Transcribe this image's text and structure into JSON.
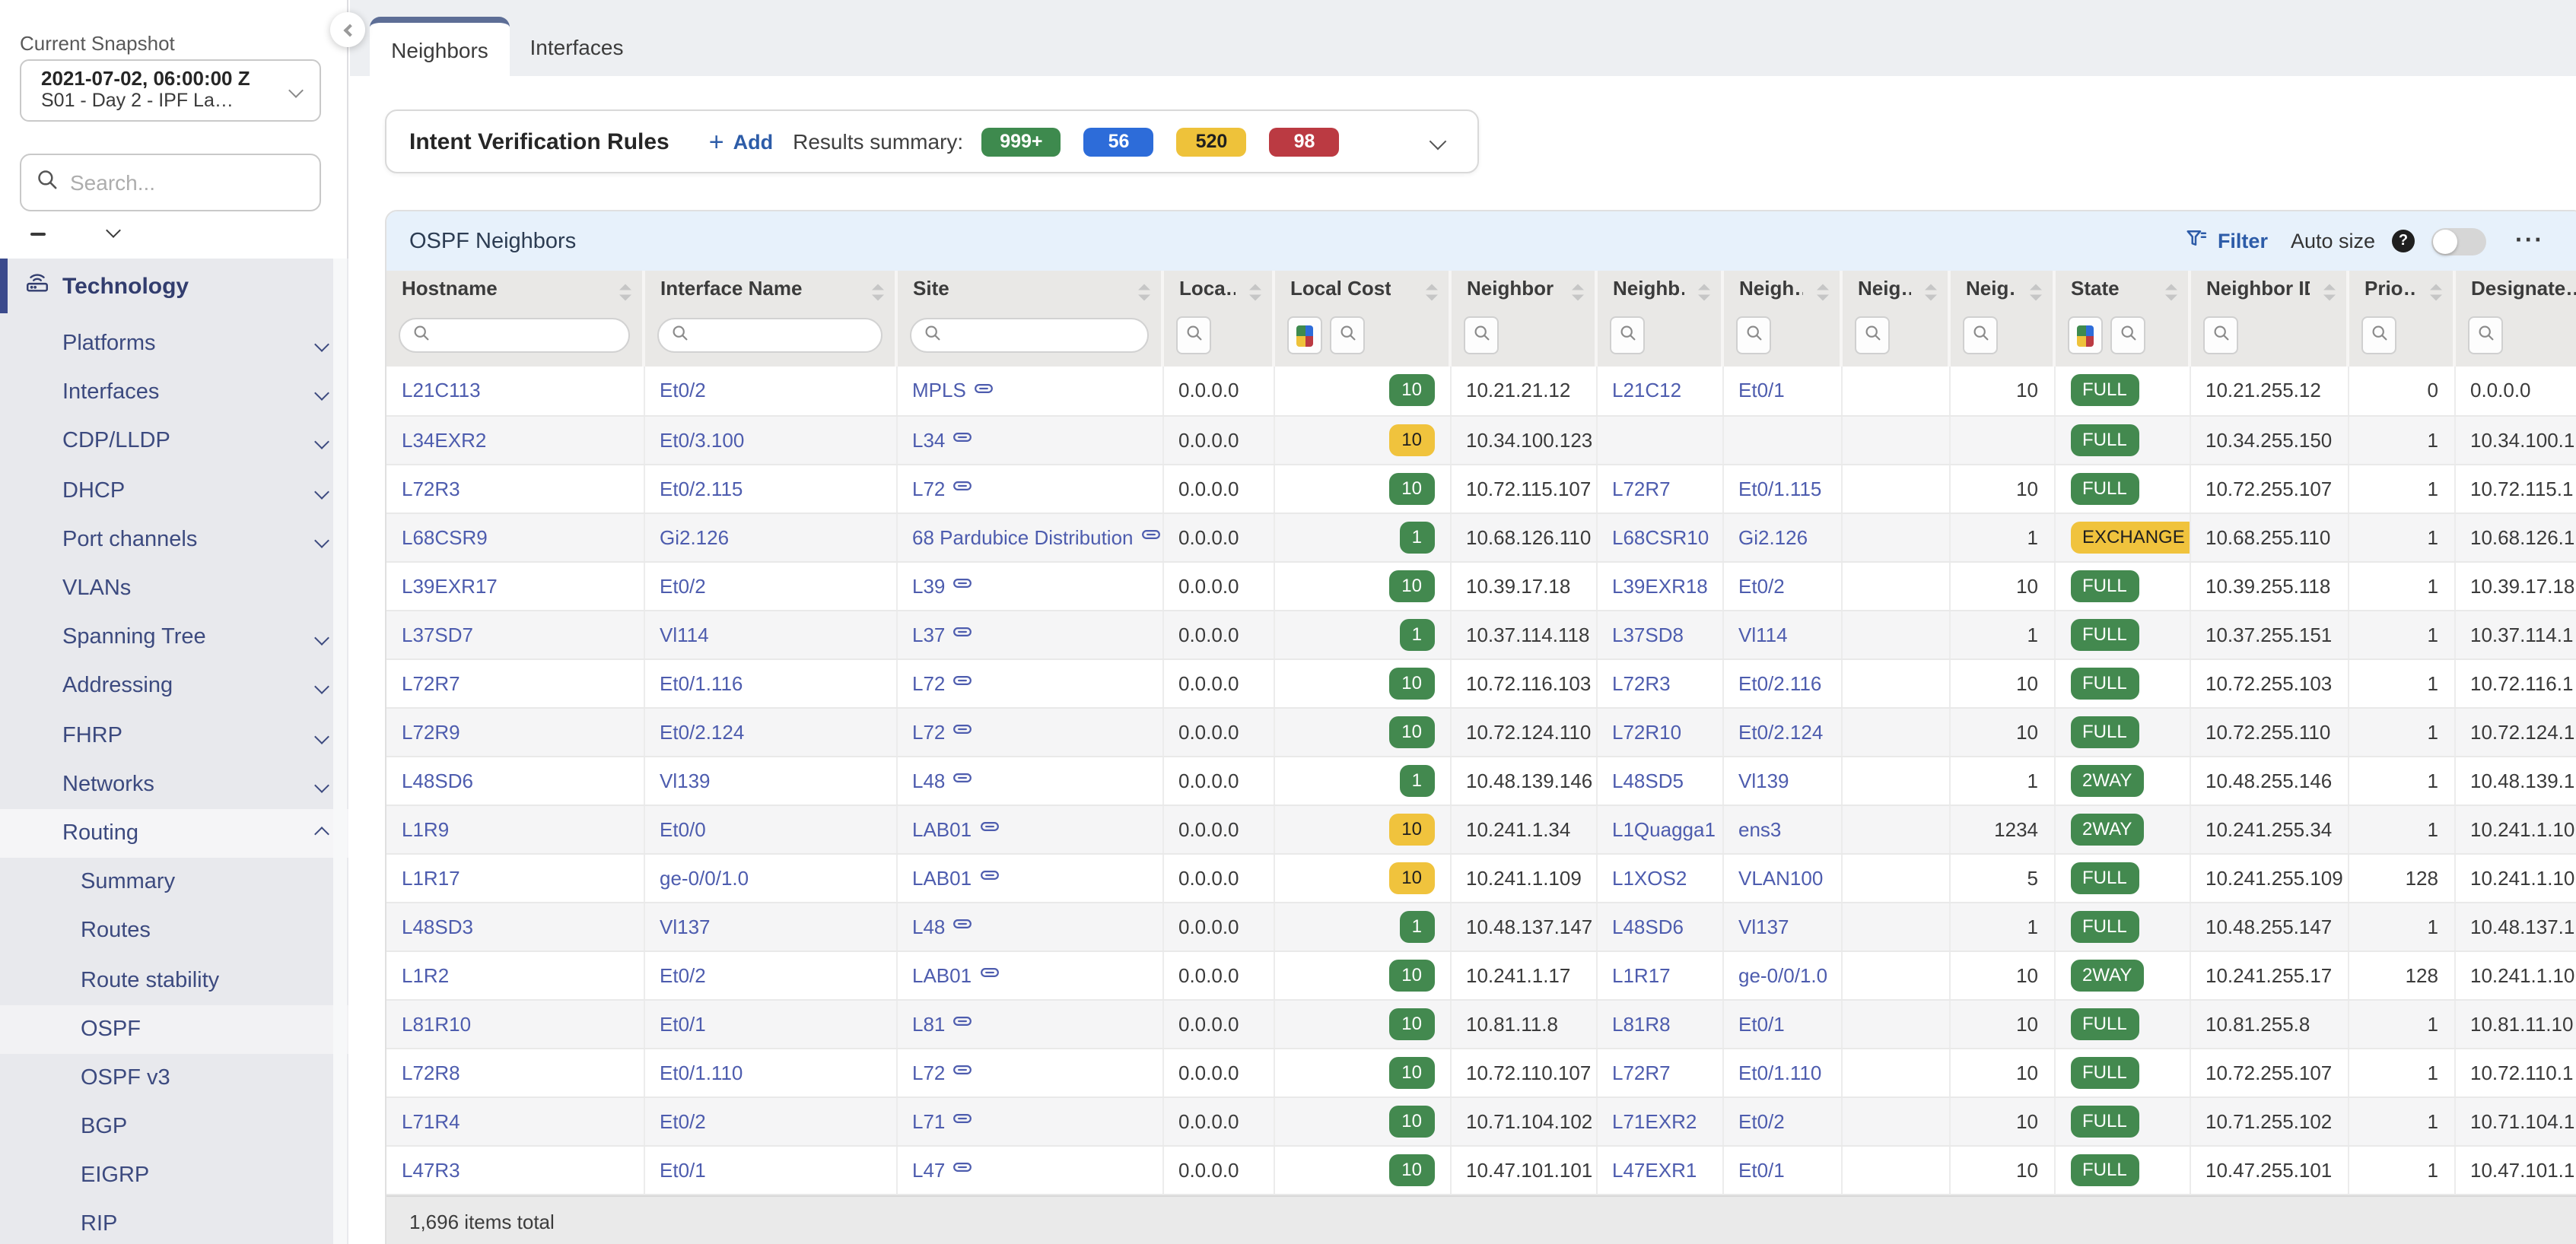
{
  "sidebar": {
    "snapshot_label": "Current Snapshot",
    "snapshot_title": "2021-07-02, 06:00:00 Z",
    "snapshot_subtitle": "S01 - Day 2 - IPF La…",
    "search_placeholder": "Search...",
    "section": {
      "label": "Technology",
      "icon": "router-icon"
    },
    "items": [
      {
        "label": "Platforms",
        "chevron": "down"
      },
      {
        "label": "Interfaces",
        "chevron": "down"
      },
      {
        "label": "CDP/LLDP",
        "chevron": "down"
      },
      {
        "label": "DHCP",
        "chevron": "down"
      },
      {
        "label": "Port channels",
        "chevron": "down"
      },
      {
        "label": "VLANs",
        "chevron": "none"
      },
      {
        "label": "Spanning Tree",
        "chevron": "down"
      },
      {
        "label": "Addressing",
        "chevron": "down"
      },
      {
        "label": "FHRP",
        "chevron": "down"
      },
      {
        "label": "Networks",
        "chevron": "down"
      },
      {
        "label": "Routing",
        "chevron": "up",
        "highlight": true
      }
    ],
    "routing_children": [
      "Summary",
      "Routes",
      "Route stability",
      "OSPF",
      "OSPF v3",
      "BGP",
      "EIGRP",
      "RIP"
    ],
    "active_child": "OSPF"
  },
  "tabs": [
    {
      "label": "Neighbors",
      "active": true
    },
    {
      "label": "Interfaces",
      "active": false
    }
  ],
  "intent": {
    "title": "Intent Verification Rules",
    "add_label": "Add",
    "add_icon": "+",
    "summary_label": "Results summary:",
    "badges": [
      {
        "text": "999+",
        "tone": "green",
        "color": "#3e8a4e"
      },
      {
        "text": "56",
        "tone": "blue",
        "color": "#2d6cd9"
      },
      {
        "text": "520",
        "tone": "yellow",
        "color": "#eec23a"
      },
      {
        "text": "98",
        "tone": "red",
        "color": "#bb3a42"
      }
    ]
  },
  "table": {
    "title": "OSPF Neighbors",
    "toolbar": {
      "filter_label": "Filter",
      "autosize_label": "Auto size",
      "help_glyph": "?",
      "toggle_state": "off",
      "more_glyph": "···"
    },
    "footer": "1,696 items total",
    "columns": [
      {
        "key": "hostname",
        "label": "Hostname",
        "width": 169,
        "filter": "input",
        "kind": "link"
      },
      {
        "key": "iface",
        "label": "Interface Name",
        "width": 166,
        "filter": "input",
        "kind": "link"
      },
      {
        "key": "site",
        "label": "Site",
        "width": 175,
        "filter": "input",
        "kind": "site"
      },
      {
        "key": "local_addr",
        "label": "Loca…",
        "width": 73,
        "filter": "btn",
        "kind": "text"
      },
      {
        "key": "local_cost",
        "label": "Local Cost",
        "width": 116,
        "filter": "color+btn",
        "kind": "badge-right"
      },
      {
        "key": "n_ip",
        "label": "Neighbor …",
        "width": 96,
        "filter": "btn",
        "kind": "text"
      },
      {
        "key": "n_host",
        "label": "Neighb…",
        "width": 83,
        "filter": "btn",
        "kind": "link"
      },
      {
        "key": "n_iface",
        "label": "Neigh…",
        "width": 78,
        "filter": "btn",
        "kind": "link"
      },
      {
        "key": "n_area",
        "label": "Neig…",
        "width": 71,
        "filter": "btn",
        "kind": "text"
      },
      {
        "key": "n_cost",
        "label": "Neig…",
        "width": 69,
        "filter": "btn",
        "kind": "text-right"
      },
      {
        "key": "state",
        "label": "State",
        "width": 89,
        "filter": "color+btn",
        "kind": "badge-left"
      },
      {
        "key": "n_id",
        "label": "Neighbor ID",
        "width": 104,
        "filter": "btn",
        "kind": "text"
      },
      {
        "key": "prio",
        "label": "Prio…",
        "width": 70,
        "filter": "btn",
        "kind": "text-right"
      },
      {
        "key": "dr",
        "label": "Designate…",
        "width": 110,
        "filter": "btn",
        "kind": "text"
      }
    ],
    "rows": [
      {
        "hostname": "L21C113",
        "iface": "Et0/2",
        "site": "MPLS",
        "local_addr": "0.0.0.0",
        "local_cost": {
          "text": "10",
          "tone": "green"
        },
        "n_ip": "10.21.21.12",
        "n_host": "L21C12",
        "n_iface": "Et0/1",
        "n_area": "",
        "n_cost": "10",
        "state": {
          "text": "FULL",
          "tone": "green"
        },
        "n_id": "10.21.255.12",
        "prio": "0",
        "dr": "0.0.0.0"
      },
      {
        "hostname": "L34EXR2",
        "iface": "Et0/3.100",
        "site": "L34",
        "local_addr": "0.0.0.0",
        "local_cost": {
          "text": "10",
          "tone": "yellow"
        },
        "n_ip": "10.34.100.123",
        "n_host": "",
        "n_iface": "",
        "n_area": "",
        "n_cost": "",
        "state": {
          "text": "FULL",
          "tone": "green"
        },
        "n_id": "10.34.255.150",
        "prio": "1",
        "dr": "10.34.100.1"
      },
      {
        "hostname": "L72R3",
        "iface": "Et0/2.115",
        "site": "L72",
        "local_addr": "0.0.0.0",
        "local_cost": {
          "text": "10",
          "tone": "green"
        },
        "n_ip": "10.72.115.107",
        "n_host": "L72R7",
        "n_iface": "Et0/1.115",
        "n_area": "",
        "n_cost": "10",
        "state": {
          "text": "FULL",
          "tone": "green"
        },
        "n_id": "10.72.255.107",
        "prio": "1",
        "dr": "10.72.115.1"
      },
      {
        "hostname": "L68CSR9",
        "iface": "Gi2.126",
        "site": "68 Pardubice Distribution",
        "local_addr": "0.0.0.0",
        "local_cost": {
          "text": "1",
          "tone": "green"
        },
        "n_ip": "10.68.126.110",
        "n_host": "L68CSR10",
        "n_iface": "Gi2.126",
        "n_area": "",
        "n_cost": "1",
        "state": {
          "text": "EXCHANGE",
          "tone": "yellow"
        },
        "n_id": "10.68.255.110",
        "prio": "1",
        "dr": "10.68.126.1"
      },
      {
        "hostname": "L39EXR17",
        "iface": "Et0/2",
        "site": "L39",
        "local_addr": "0.0.0.0",
        "local_cost": {
          "text": "10",
          "tone": "green"
        },
        "n_ip": "10.39.17.18",
        "n_host": "L39EXR18",
        "n_iface": "Et0/2",
        "n_area": "",
        "n_cost": "10",
        "state": {
          "text": "FULL",
          "tone": "green"
        },
        "n_id": "10.39.255.118",
        "prio": "1",
        "dr": "10.39.17.18"
      },
      {
        "hostname": "L37SD7",
        "iface": "Vl114",
        "site": "L37",
        "local_addr": "0.0.0.0",
        "local_cost": {
          "text": "1",
          "tone": "green"
        },
        "n_ip": "10.37.114.118",
        "n_host": "L37SD8",
        "n_iface": "Vl114",
        "n_area": "",
        "n_cost": "1",
        "state": {
          "text": "FULL",
          "tone": "green"
        },
        "n_id": "10.37.255.151",
        "prio": "1",
        "dr": "10.37.114.1"
      },
      {
        "hostname": "L72R7",
        "iface": "Et0/1.116",
        "site": "L72",
        "local_addr": "0.0.0.0",
        "local_cost": {
          "text": "10",
          "tone": "green"
        },
        "n_ip": "10.72.116.103",
        "n_host": "L72R3",
        "n_iface": "Et0/2.116",
        "n_area": "",
        "n_cost": "10",
        "state": {
          "text": "FULL",
          "tone": "green"
        },
        "n_id": "10.72.255.103",
        "prio": "1",
        "dr": "10.72.116.1"
      },
      {
        "hostname": "L72R9",
        "iface": "Et0/2.124",
        "site": "L72",
        "local_addr": "0.0.0.0",
        "local_cost": {
          "text": "10",
          "tone": "green"
        },
        "n_ip": "10.72.124.110",
        "n_host": "L72R10",
        "n_iface": "Et0/2.124",
        "n_area": "",
        "n_cost": "10",
        "state": {
          "text": "FULL",
          "tone": "green"
        },
        "n_id": "10.72.255.110",
        "prio": "1",
        "dr": "10.72.124.1"
      },
      {
        "hostname": "L48SD6",
        "iface": "Vl139",
        "site": "L48",
        "local_addr": "0.0.0.0",
        "local_cost": {
          "text": "1",
          "tone": "green"
        },
        "n_ip": "10.48.139.146",
        "n_host": "L48SD5",
        "n_iface": "Vl139",
        "n_area": "",
        "n_cost": "1",
        "state": {
          "text": "2WAY",
          "tone": "green"
        },
        "n_id": "10.48.255.146",
        "prio": "1",
        "dr": "10.48.139.1"
      },
      {
        "hostname": "L1R9",
        "iface": "Et0/0",
        "site": "LAB01",
        "local_addr": "0.0.0.0",
        "local_cost": {
          "text": "10",
          "tone": "yellow"
        },
        "n_ip": "10.241.1.34",
        "n_host": "L1Quagga1",
        "n_iface": "ens3",
        "n_area": "",
        "n_cost": "1234",
        "state": {
          "text": "2WAY",
          "tone": "green"
        },
        "n_id": "10.241.255.34",
        "prio": "1",
        "dr": "10.241.1.10"
      },
      {
        "hostname": "L1R17",
        "iface": "ge-0/0/1.0",
        "site": "LAB01",
        "local_addr": "0.0.0.0",
        "local_cost": {
          "text": "10",
          "tone": "yellow"
        },
        "n_ip": "10.241.1.109",
        "n_host": "L1XOS2",
        "n_iface": "VLAN100",
        "n_area": "",
        "n_cost": "5",
        "state": {
          "text": "FULL",
          "tone": "green"
        },
        "n_id": "10.241.255.109",
        "prio": "128",
        "dr": "10.241.1.10"
      },
      {
        "hostname": "L48SD3",
        "iface": "Vl137",
        "site": "L48",
        "local_addr": "0.0.0.0",
        "local_cost": {
          "text": "1",
          "tone": "green"
        },
        "n_ip": "10.48.137.147",
        "n_host": "L48SD6",
        "n_iface": "Vl137",
        "n_area": "",
        "n_cost": "1",
        "state": {
          "text": "FULL",
          "tone": "green"
        },
        "n_id": "10.48.255.147",
        "prio": "1",
        "dr": "10.48.137.1"
      },
      {
        "hostname": "L1R2",
        "iface": "Et0/2",
        "site": "LAB01",
        "local_addr": "0.0.0.0",
        "local_cost": {
          "text": "10",
          "tone": "green"
        },
        "n_ip": "10.241.1.17",
        "n_host": "L1R17",
        "n_iface": "ge-0/0/1.0",
        "n_area": "",
        "n_cost": "10",
        "state": {
          "text": "2WAY",
          "tone": "green"
        },
        "n_id": "10.241.255.17",
        "prio": "128",
        "dr": "10.241.1.10"
      },
      {
        "hostname": "L81R10",
        "iface": "Et0/1",
        "site": "L81",
        "local_addr": "0.0.0.0",
        "local_cost": {
          "text": "10",
          "tone": "green"
        },
        "n_ip": "10.81.11.8",
        "n_host": "L81R8",
        "n_iface": "Et0/1",
        "n_area": "",
        "n_cost": "10",
        "state": {
          "text": "FULL",
          "tone": "green"
        },
        "n_id": "10.81.255.8",
        "prio": "1",
        "dr": "10.81.11.10"
      },
      {
        "hostname": "L72R8",
        "iface": "Et0/1.110",
        "site": "L72",
        "local_addr": "0.0.0.0",
        "local_cost": {
          "text": "10",
          "tone": "green"
        },
        "n_ip": "10.72.110.107",
        "n_host": "L72R7",
        "n_iface": "Et0/1.110",
        "n_area": "",
        "n_cost": "10",
        "state": {
          "text": "FULL",
          "tone": "green"
        },
        "n_id": "10.72.255.107",
        "prio": "1",
        "dr": "10.72.110.1"
      },
      {
        "hostname": "L71R4",
        "iface": "Et0/2",
        "site": "L71",
        "local_addr": "0.0.0.0",
        "local_cost": {
          "text": "10",
          "tone": "green"
        },
        "n_ip": "10.71.104.102",
        "n_host": "L71EXR2",
        "n_iface": "Et0/2",
        "n_area": "",
        "n_cost": "10",
        "state": {
          "text": "FULL",
          "tone": "green"
        },
        "n_id": "10.71.255.102",
        "prio": "1",
        "dr": "10.71.104.1"
      },
      {
        "hostname": "L47R3",
        "iface": "Et0/1",
        "site": "L47",
        "local_addr": "0.0.0.0",
        "local_cost": {
          "text": "10",
          "tone": "green"
        },
        "n_ip": "10.47.101.101",
        "n_host": "L47EXR1",
        "n_iface": "Et0/1",
        "n_area": "",
        "n_cost": "10",
        "state": {
          "text": "FULL",
          "tone": "green"
        },
        "n_id": "10.47.255.101",
        "prio": "1",
        "dr": "10.47.101.1"
      }
    ]
  },
  "colors": {
    "green": "#43894f",
    "yellow": "#f0c33d",
    "blue_badge": "#2e6fd8",
    "red": "#b93a41",
    "link": "#4d5cae",
    "accent_blue": "#2d5ca8",
    "tab_accent": "#5d6e96",
    "table_titlebar": "#e7f1fb",
    "sidebar_bg": "#e8e9ed",
    "header_bg": "#e9e8e6"
  }
}
